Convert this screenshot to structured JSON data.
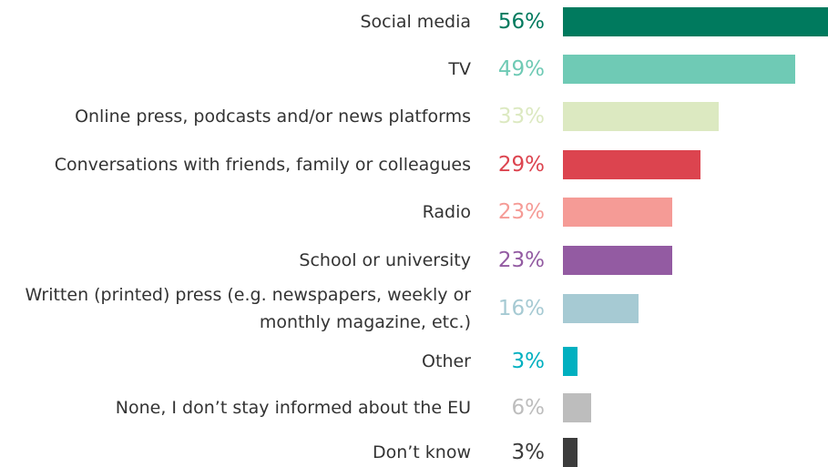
{
  "chart_data": {
    "type": "bar",
    "orientation": "horizontal",
    "categories": [
      "Social media",
      "TV",
      "Online press, podcasts and/or news platforms",
      "Conversations with friends, family or colleagues",
      "Radio",
      "School or university",
      "Written (printed) press (e.g. newspapers, weekly or monthly magazine, etc.)",
      "Other",
      "None, I don’t stay informed about the EU",
      "Don’t know"
    ],
    "values": [
      56,
      49,
      33,
      29,
      23,
      23,
      16,
      3,
      6,
      3
    ],
    "value_labels": [
      "56%",
      "49%",
      "33%",
      "29%",
      "23%",
      "23%",
      "16%",
      "3%",
      "6%",
      "3%"
    ],
    "colors": [
      "#007a5e",
      "#6fcab5",
      "#dce9c1",
      "#dc444f",
      "#f59b96",
      "#935ba2",
      "#a6cad3",
      "#00b0c0",
      "#bdbdbd",
      "#3c3c3c"
    ]
  }
}
